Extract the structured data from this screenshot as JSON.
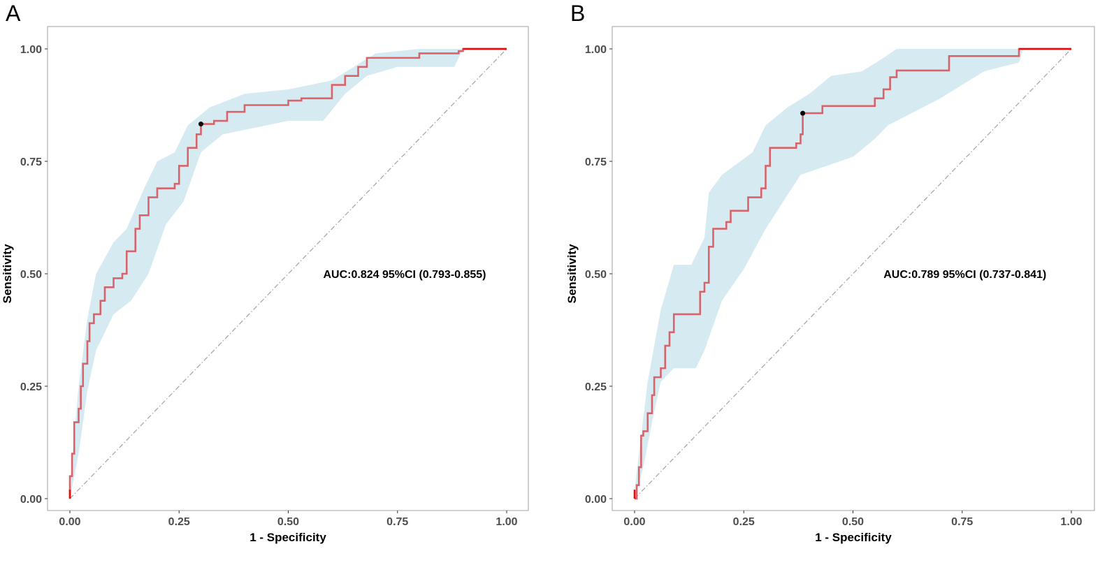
{
  "colors": {
    "curve": "#d9636b",
    "curve_end": "#ff0000",
    "band": "#d6eaf1",
    "diagonal": "#a8a8a8",
    "point": "#000000",
    "axis_text": "#4d4d4d",
    "frame": "#a0a0a0"
  },
  "chart_data": [
    {
      "type": "line",
      "panel_label": "A",
      "xlabel": "1 - Specificity",
      "ylabel": "Sensitivity",
      "xlim": [
        0,
        1
      ],
      "ylim": [
        0,
        1
      ],
      "xticks": [
        "0.00",
        "0.25",
        "0.50",
        "0.75",
        "1.00"
      ],
      "yticks": [
        "0.00",
        "0.25",
        "0.50",
        "0.75",
        "1.00"
      ],
      "grid": false,
      "annotation": "AUC:0.824 95%CI (0.793-0.855)",
      "annotation_pos": [
        0.58,
        0.5
      ],
      "cutoff_point": [
        0.3,
        0.833
      ],
      "roc": [
        [
          0,
          0
        ],
        [
          0,
          0.05
        ],
        [
          0.005,
          0.1
        ],
        [
          0.01,
          0.17
        ],
        [
          0.02,
          0.2
        ],
        [
          0.025,
          0.25
        ],
        [
          0.03,
          0.3
        ],
        [
          0.04,
          0.35
        ],
        [
          0.045,
          0.39
        ],
        [
          0.055,
          0.41
        ],
        [
          0.07,
          0.44
        ],
        [
          0.08,
          0.47
        ],
        [
          0.1,
          0.49
        ],
        [
          0.12,
          0.5
        ],
        [
          0.13,
          0.55
        ],
        [
          0.15,
          0.6
        ],
        [
          0.16,
          0.63
        ],
        [
          0.18,
          0.67
        ],
        [
          0.2,
          0.69
        ],
        [
          0.24,
          0.7
        ],
        [
          0.25,
          0.74
        ],
        [
          0.27,
          0.78
        ],
        [
          0.29,
          0.81
        ],
        [
          0.3,
          0.833
        ],
        [
          0.33,
          0.84
        ],
        [
          0.36,
          0.86
        ],
        [
          0.4,
          0.875
        ],
        [
          0.5,
          0.885
        ],
        [
          0.53,
          0.89
        ],
        [
          0.58,
          0.89
        ],
        [
          0.6,
          0.92
        ],
        [
          0.63,
          0.94
        ],
        [
          0.66,
          0.96
        ],
        [
          0.68,
          0.98
        ],
        [
          0.8,
          0.99
        ],
        [
          0.89,
          0.995
        ],
        [
          0.9,
          1
        ],
        [
          1,
          1
        ]
      ],
      "ci_upper": [
        [
          0,
          0.03
        ],
        [
          0.02,
          0.25
        ],
        [
          0.04,
          0.4
        ],
        [
          0.06,
          0.5
        ],
        [
          0.1,
          0.57
        ],
        [
          0.13,
          0.6
        ],
        [
          0.17,
          0.69
        ],
        [
          0.2,
          0.75
        ],
        [
          0.24,
          0.77
        ],
        [
          0.27,
          0.83
        ],
        [
          0.32,
          0.87
        ],
        [
          0.4,
          0.9
        ],
        [
          0.5,
          0.91
        ],
        [
          0.6,
          0.93
        ],
        [
          0.65,
          0.96
        ],
        [
          0.7,
          0.99
        ],
        [
          0.8,
          1
        ],
        [
          1,
          1
        ]
      ],
      "ci_lower": [
        [
          0,
          0
        ],
        [
          0.02,
          0.1
        ],
        [
          0.04,
          0.24
        ],
        [
          0.06,
          0.33
        ],
        [
          0.1,
          0.41
        ],
        [
          0.14,
          0.44
        ],
        [
          0.18,
          0.5
        ],
        [
          0.22,
          0.61
        ],
        [
          0.26,
          0.66
        ],
        [
          0.3,
          0.77
        ],
        [
          0.35,
          0.81
        ],
        [
          0.4,
          0.82
        ],
        [
          0.5,
          0.84
        ],
        [
          0.58,
          0.84
        ],
        [
          0.63,
          0.9
        ],
        [
          0.68,
          0.94
        ],
        [
          0.75,
          0.96
        ],
        [
          0.88,
          0.96
        ],
        [
          0.9,
          1
        ],
        [
          1,
          1
        ]
      ]
    },
    {
      "type": "line",
      "panel_label": "B",
      "xlabel": "1 - Specificity",
      "ylabel": "Sensitivity",
      "xlim": [
        0,
        1
      ],
      "ylim": [
        0,
        1
      ],
      "xticks": [
        "0.00",
        "0.25",
        "0.50",
        "0.75",
        "1.00"
      ],
      "yticks": [
        "0.00",
        "0.25",
        "0.50",
        "0.75",
        "1.00"
      ],
      "grid": false,
      "annotation": "AUC:0.789 95%CI (0.737-0.841)",
      "annotation_pos": [
        0.57,
        0.5
      ],
      "cutoff_point": [
        0.385,
        0.857
      ],
      "roc": [
        [
          0,
          0
        ],
        [
          0.005,
          0.03
        ],
        [
          0.01,
          0.07
        ],
        [
          0.015,
          0.14
        ],
        [
          0.02,
          0.15
        ],
        [
          0.03,
          0.19
        ],
        [
          0.04,
          0.23
        ],
        [
          0.045,
          0.27
        ],
        [
          0.06,
          0.29
        ],
        [
          0.07,
          0.34
        ],
        [
          0.08,
          0.37
        ],
        [
          0.09,
          0.41
        ],
        [
          0.14,
          0.41
        ],
        [
          0.15,
          0.46
        ],
        [
          0.16,
          0.48
        ],
        [
          0.17,
          0.56
        ],
        [
          0.18,
          0.6
        ],
        [
          0.21,
          0.615
        ],
        [
          0.22,
          0.64
        ],
        [
          0.25,
          0.64
        ],
        [
          0.26,
          0.67
        ],
        [
          0.29,
          0.69
        ],
        [
          0.3,
          0.74
        ],
        [
          0.31,
          0.78
        ],
        [
          0.35,
          0.78
        ],
        [
          0.37,
          0.79
        ],
        [
          0.38,
          0.81
        ],
        [
          0.385,
          0.857
        ],
        [
          0.42,
          0.857
        ],
        [
          0.43,
          0.873
        ],
        [
          0.54,
          0.873
        ],
        [
          0.55,
          0.89
        ],
        [
          0.57,
          0.91
        ],
        [
          0.585,
          0.937
        ],
        [
          0.6,
          0.952
        ],
        [
          0.71,
          0.952
        ],
        [
          0.72,
          0.984
        ],
        [
          0.87,
          0.984
        ],
        [
          0.88,
          1
        ],
        [
          1,
          1
        ]
      ],
      "ci_upper": [
        [
          0,
          0.02
        ],
        [
          0.03,
          0.26
        ],
        [
          0.06,
          0.42
        ],
        [
          0.09,
          0.52
        ],
        [
          0.13,
          0.52
        ],
        [
          0.16,
          0.58
        ],
        [
          0.17,
          0.68
        ],
        [
          0.2,
          0.72
        ],
        [
          0.27,
          0.77
        ],
        [
          0.3,
          0.83
        ],
        [
          0.35,
          0.87
        ],
        [
          0.4,
          0.9
        ],
        [
          0.45,
          0.94
        ],
        [
          0.52,
          0.95
        ],
        [
          0.57,
          0.98
        ],
        [
          0.6,
          1
        ],
        [
          1,
          1
        ]
      ],
      "ci_lower": [
        [
          0,
          0
        ],
        [
          0.02,
          0.07
        ],
        [
          0.04,
          0.17
        ],
        [
          0.06,
          0.26
        ],
        [
          0.09,
          0.29
        ],
        [
          0.14,
          0.29
        ],
        [
          0.16,
          0.33
        ],
        [
          0.2,
          0.44
        ],
        [
          0.25,
          0.51
        ],
        [
          0.3,
          0.6
        ],
        [
          0.38,
          0.72
        ],
        [
          0.5,
          0.76
        ],
        [
          0.55,
          0.8
        ],
        [
          0.58,
          0.83
        ],
        [
          0.7,
          0.89
        ],
        [
          0.8,
          0.95
        ],
        [
          0.88,
          0.97
        ],
        [
          0.89,
          1
        ],
        [
          1,
          1
        ]
      ]
    }
  ]
}
